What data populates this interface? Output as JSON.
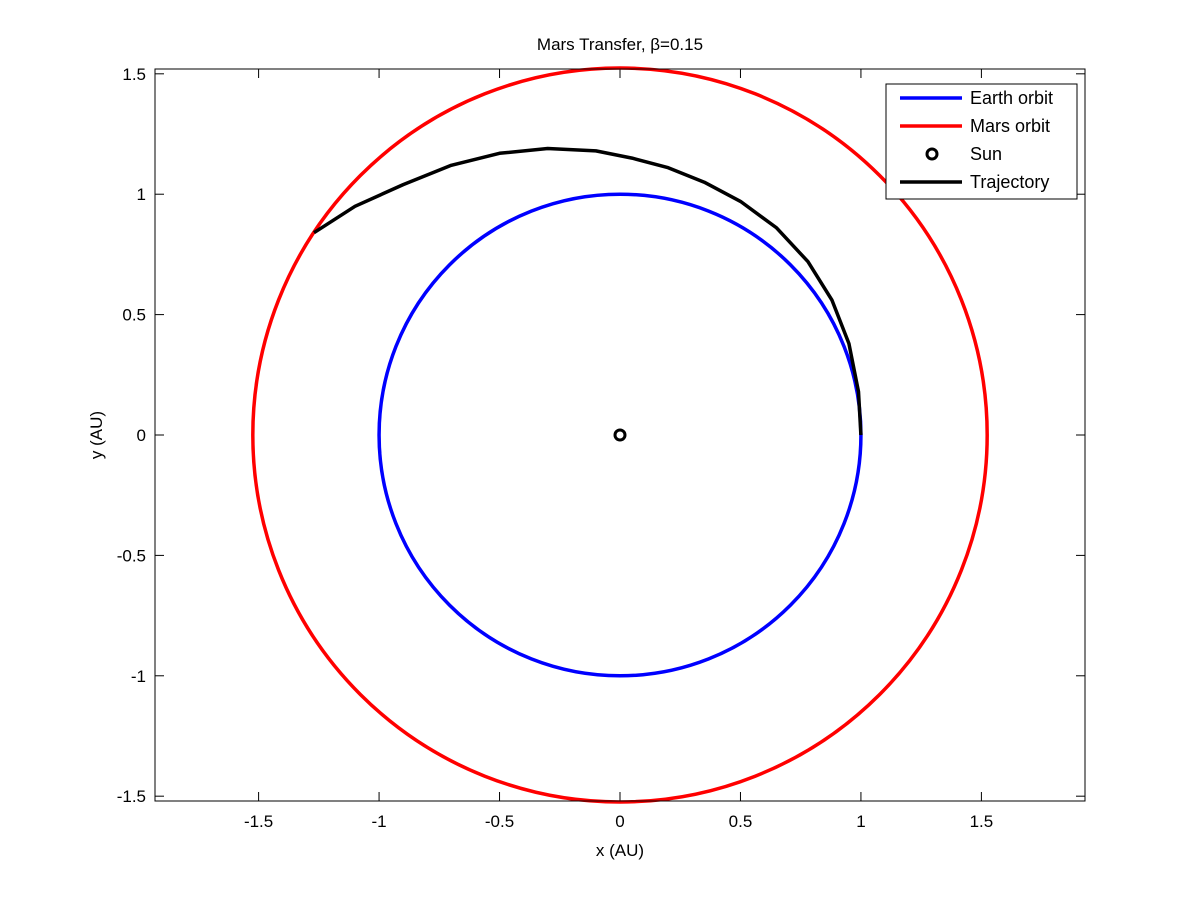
{
  "chart_data": {
    "type": "line",
    "title": "Mars Transfer, β=0.15",
    "xlabel": "x (AU)",
    "ylabel": "y (AU)",
    "xlim": [
      -1.93,
      1.93
    ],
    "ylim": [
      -1.52,
      1.52
    ],
    "xticks": [
      -1.5,
      -1,
      -0.5,
      0,
      0.5,
      1,
      1.5
    ],
    "xtick_labels": [
      "-1.5",
      "-1",
      "-0.5",
      "0",
      "0.5",
      "1",
      "1.5"
    ],
    "yticks": [
      -1.5,
      -1,
      -0.5,
      0,
      0.5,
      1,
      1.5
    ],
    "ytick_labels": [
      "-1.5",
      "-1",
      "-0.5",
      "0",
      "0.5",
      "1",
      "1.5"
    ],
    "grid": false,
    "legend_position": "top-right",
    "series": [
      {
        "name": "Earth orbit",
        "kind": "circle",
        "radius": 1.0,
        "color": "#0000ff"
      },
      {
        "name": "Mars orbit",
        "kind": "circle",
        "radius": 1.524,
        "color": "#ff0000"
      },
      {
        "name": "Sun",
        "kind": "marker",
        "x": [
          0
        ],
        "y": [
          0
        ],
        "color": "#000000"
      },
      {
        "name": "Trajectory",
        "kind": "line",
        "color": "#000000",
        "x": [
          1.0,
          0.99,
          0.95,
          0.88,
          0.78,
          0.65,
          0.5,
          0.35,
          0.2,
          0.05,
          -0.1,
          -0.3,
          -0.5,
          -0.7,
          -0.9,
          -1.1,
          -1.27
        ],
        "y": [
          0.0,
          0.18,
          0.38,
          0.56,
          0.72,
          0.86,
          0.97,
          1.05,
          1.11,
          1.15,
          1.18,
          1.19,
          1.17,
          1.12,
          1.04,
          0.95,
          0.84
        ]
      }
    ]
  }
}
